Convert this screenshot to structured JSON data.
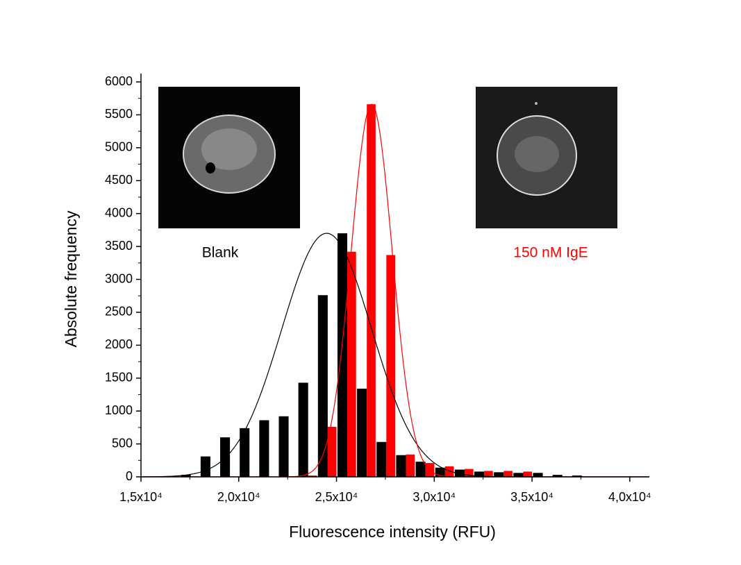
{
  "chart_data": {
    "type": "histogram",
    "x_label": "Fluorescence intensity (RFU)",
    "y_label": "Absolute frequency",
    "bins": [
      17000,
      18000,
      19000,
      20000,
      21000,
      22000,
      23000,
      24000,
      25000,
      26000,
      27000,
      28000,
      29000,
      30000,
      31000,
      32000,
      33000,
      34000,
      35000,
      36000,
      37000,
      38000
    ],
    "series": [
      {
        "name": "Blank",
        "color": "#000000",
        "values": [
          30,
          310,
          600,
          740,
          860,
          920,
          1430,
          2760,
          3700,
          1340,
          530,
          330,
          230,
          140,
          110,
          80,
          70,
          60,
          60,
          30,
          20
        ]
      },
      {
        "name": "150 nM IgE",
        "color": "#ff0000",
        "values": [
          0,
          0,
          0,
          0,
          0,
          0,
          20,
          760,
          3420,
          5660,
          3370,
          340,
          210,
          160,
          120,
          90,
          90,
          80,
          0,
          0,
          0
        ]
      }
    ],
    "fits": [
      {
        "color": "#000000",
        "amplitude": 3700,
        "center": 24500,
        "sigma": 2300
      },
      {
        "color": "#ff0000",
        "amplitude": 5660,
        "center": 26800,
        "sigma": 1050
      }
    ],
    "xlim": [
      15000,
      41000
    ],
    "ylim": [
      0,
      6000
    ],
    "xticks": [
      {
        "value": 15000,
        "label": "1,5x10⁴"
      },
      {
        "value": 20000,
        "label": "2,0x10⁴"
      },
      {
        "value": 25000,
        "label": "2,5x10⁴"
      },
      {
        "value": 30000,
        "label": "3,0x10⁴"
      },
      {
        "value": 35000,
        "label": "3,5x10⁴"
      },
      {
        "value": 40000,
        "label": "4,0x10⁴"
      }
    ],
    "yticks": [
      0,
      500,
      1000,
      1500,
      2000,
      2500,
      3000,
      3500,
      4000,
      4500,
      5000,
      5500,
      6000
    ],
    "grid": false
  }
}
